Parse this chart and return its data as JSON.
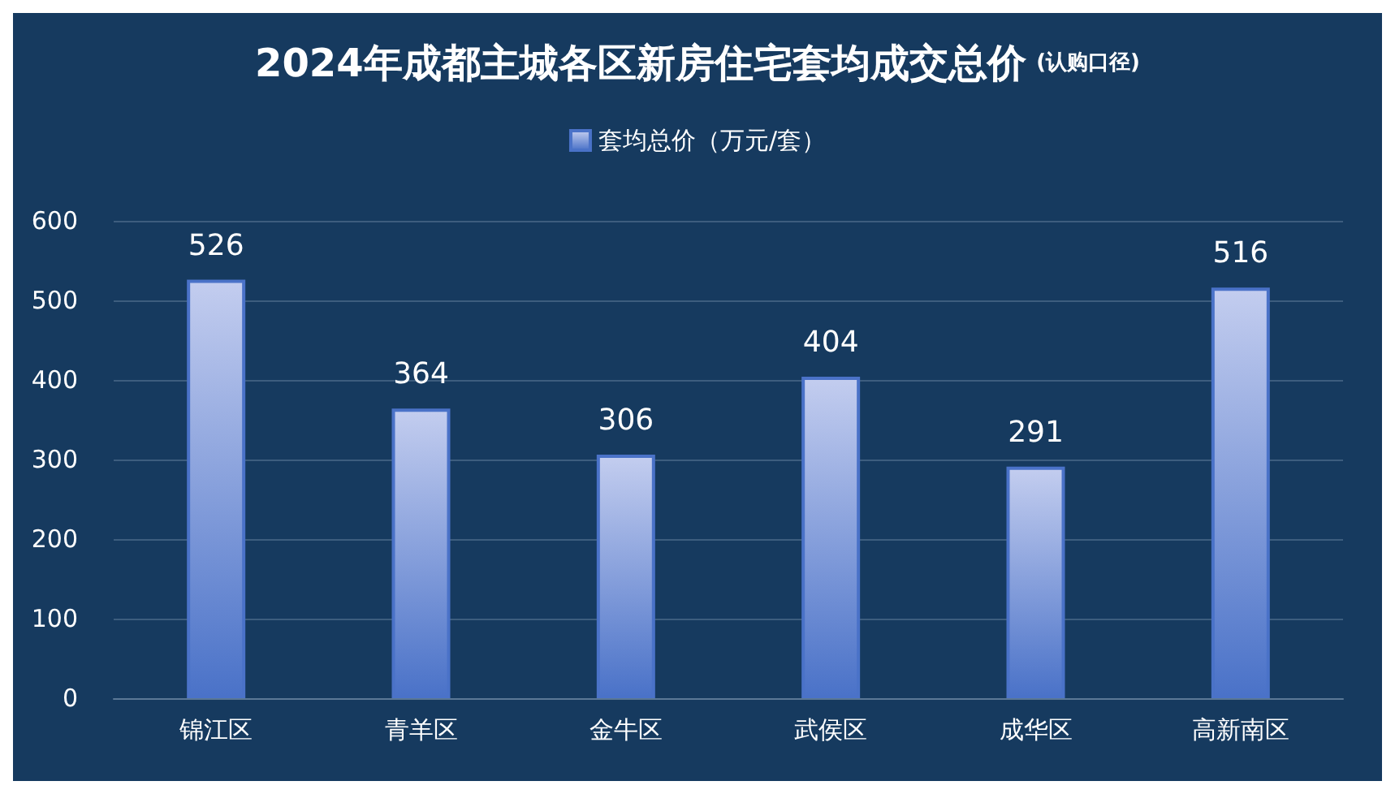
{
  "chart_data": {
    "type": "bar",
    "title": "2024年成都主城各区新房住宅套均成交总价",
    "subtitle": "(认购口径)",
    "categories": [
      "锦江区",
      "青羊区",
      "金牛区",
      "武侯区",
      "成华区",
      "高新南区"
    ],
    "series": [
      {
        "name": "套均总价（万元/套）",
        "color": "#4a72c8",
        "values": [
          526,
          364,
          306,
          404,
          291,
          516
        ]
      }
    ],
    "ylim": [
      0,
      600
    ],
    "yticks": [
      0,
      100,
      200,
      300,
      400,
      500,
      600
    ],
    "grid": "y",
    "legend": "top",
    "data_labels": true
  }
}
